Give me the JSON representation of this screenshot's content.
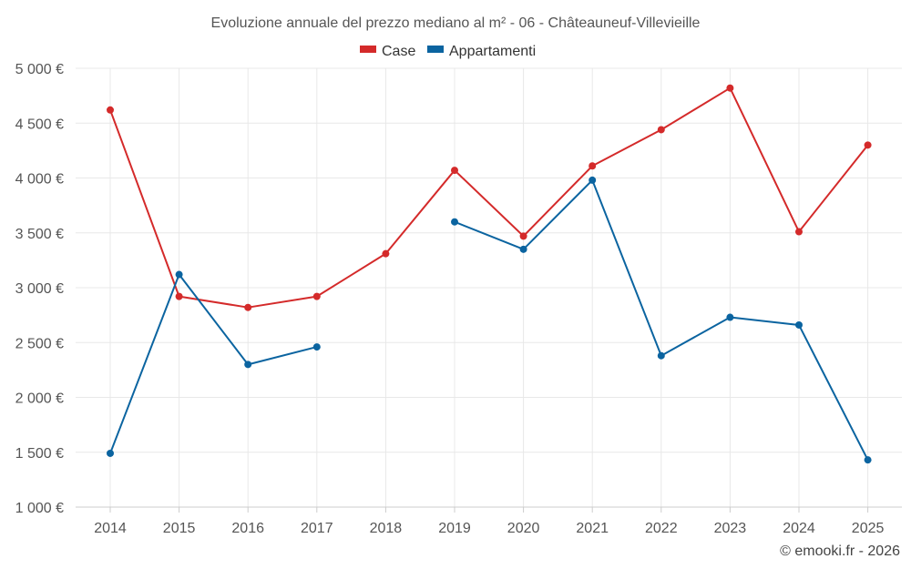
{
  "chart_data": {
    "type": "line",
    "title": "Evoluzione annuale del prezzo mediano al m² - 06 - Châteauneuf-Villevieille",
    "x": [
      "2014",
      "2015",
      "2016",
      "2017",
      "2018",
      "2019",
      "2020",
      "2021",
      "2022",
      "2023",
      "2024",
      "2025"
    ],
    "series": [
      {
        "name": "Case",
        "color": "#d42a2a",
        "values": [
          4620,
          2920,
          2820,
          2920,
          3310,
          4070,
          3470,
          4110,
          4440,
          4820,
          3510,
          4300
        ]
      },
      {
        "name": "Appartamenti",
        "color": "#0b64a0",
        "values": [
          1490,
          3120,
          2300,
          2460,
          null,
          3600,
          3350,
          3980,
          2380,
          2730,
          2660,
          1430
        ]
      }
    ],
    "ylim": [
      1000,
      5000
    ],
    "yticks": [
      1000,
      1500,
      2000,
      2500,
      3000,
      3500,
      4000,
      4500,
      5000
    ],
    "ytick_labels": [
      "1 000 €",
      "1 500 €",
      "2 000 €",
      "2 500 €",
      "3 000 €",
      "3 500 €",
      "4 000 €",
      "4 500 €",
      "5 000 €"
    ],
    "grid": true,
    "legend": "top-center",
    "credit": "© emooki.fr - 2026"
  }
}
